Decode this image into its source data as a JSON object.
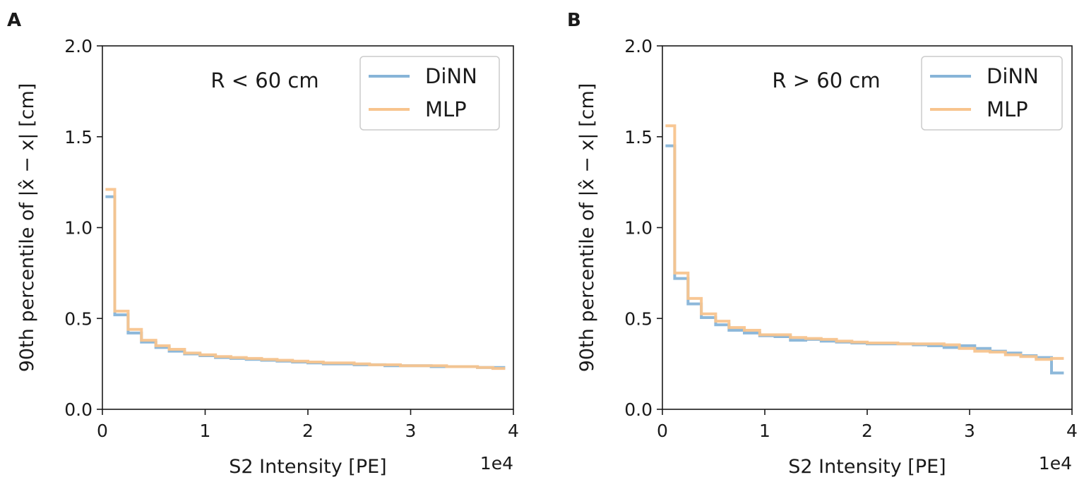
{
  "chart_data": [
    {
      "type": "line",
      "step": true,
      "panel_label": "A",
      "annotation": "R < 60 cm",
      "xlabel": "S2 Intensity [PE]",
      "ylabel": "90th percentile of |x̂ − x| [cm]",
      "x_exponent": "1e4",
      "xlim": [
        0,
        4
      ],
      "ylim": [
        0,
        2
      ],
      "xticks": [
        "0",
        "1",
        "2",
        "3",
        "4"
      ],
      "yticks": [
        "0.0",
        "0.5",
        "1.0",
        "1.5",
        "2.0"
      ],
      "legend_position": "top-right",
      "bin_edges": [
        0.03,
        0.12,
        0.25,
        0.38,
        0.52,
        0.65,
        0.8,
        0.95,
        1.1,
        1.25,
        1.4,
        1.55,
        1.7,
        1.85,
        2.0,
        2.15,
        2.3,
        2.45,
        2.6,
        2.75,
        2.9,
        3.05,
        3.2,
        3.35,
        3.5,
        3.65,
        3.8,
        3.92
      ],
      "series": [
        {
          "name": "DiNN",
          "color": "#87b4d8",
          "values": [
            1.17,
            0.52,
            0.42,
            0.37,
            0.34,
            0.32,
            0.305,
            0.295,
            0.285,
            0.28,
            0.275,
            0.27,
            0.265,
            0.26,
            0.255,
            0.25,
            0.25,
            0.245,
            0.245,
            0.24,
            0.24,
            0.24,
            0.235,
            0.235,
            0.235,
            0.23,
            0.23
          ]
        },
        {
          "name": "MLP",
          "color": "#f8c48e",
          "values": [
            1.21,
            0.54,
            0.44,
            0.38,
            0.35,
            0.33,
            0.31,
            0.3,
            0.29,
            0.285,
            0.28,
            0.275,
            0.27,
            0.265,
            0.26,
            0.255,
            0.255,
            0.25,
            0.245,
            0.245,
            0.24,
            0.24,
            0.24,
            0.235,
            0.235,
            0.23,
            0.225
          ]
        }
      ]
    },
    {
      "type": "line",
      "step": true,
      "panel_label": "B",
      "annotation": "R > 60 cm",
      "xlabel": "S2 Intensity [PE]",
      "ylabel": "90th percentile of |x̂ − x| [cm]",
      "x_exponent": "1e4",
      "xlim": [
        0,
        4
      ],
      "ylim": [
        0,
        2
      ],
      "xticks": [
        "0",
        "1",
        "2",
        "3",
        "4"
      ],
      "yticks": [
        "0.0",
        "0.5",
        "1.0",
        "1.5",
        "2.0"
      ],
      "legend_position": "top-right",
      "bin_edges": [
        0.03,
        0.12,
        0.25,
        0.38,
        0.52,
        0.65,
        0.8,
        0.95,
        1.1,
        1.25,
        1.4,
        1.55,
        1.7,
        1.85,
        2.0,
        2.15,
        2.3,
        2.45,
        2.6,
        2.75,
        2.9,
        3.05,
        3.2,
        3.35,
        3.5,
        3.65,
        3.8,
        3.92
      ],
      "series": [
        {
          "name": "DiNN",
          "color": "#87b4d8",
          "values": [
            1.45,
            0.72,
            0.58,
            0.505,
            0.465,
            0.435,
            0.42,
            0.405,
            0.4,
            0.38,
            0.385,
            0.375,
            0.37,
            0.365,
            0.36,
            0.36,
            0.36,
            0.355,
            0.35,
            0.34,
            0.35,
            0.335,
            0.32,
            0.31,
            0.295,
            0.285,
            0.2
          ]
        },
        {
          "name": "MLP",
          "color": "#f8c48e",
          "values": [
            1.56,
            0.75,
            0.61,
            0.525,
            0.485,
            0.45,
            0.435,
            0.41,
            0.41,
            0.395,
            0.39,
            0.385,
            0.375,
            0.37,
            0.365,
            0.365,
            0.36,
            0.36,
            0.36,
            0.355,
            0.335,
            0.32,
            0.315,
            0.3,
            0.29,
            0.275,
            0.28
          ]
        }
      ]
    }
  ]
}
